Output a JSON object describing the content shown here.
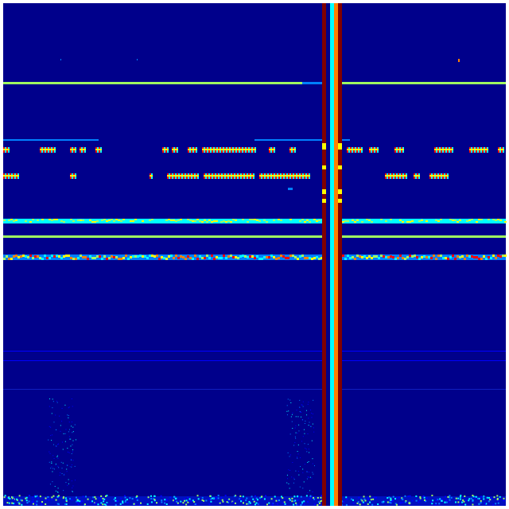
{
  "colormap": {
    "name": "jet",
    "background": "#00008b",
    "dark_red": "#800000",
    "red": "#ff0000",
    "orange": "#ff8000",
    "yellow": "#ffff00",
    "green_yellow": "#a0ff60",
    "cyan": "#00ffff",
    "light_blue": "#0080ff",
    "blue": "#0000ff"
  }
}
